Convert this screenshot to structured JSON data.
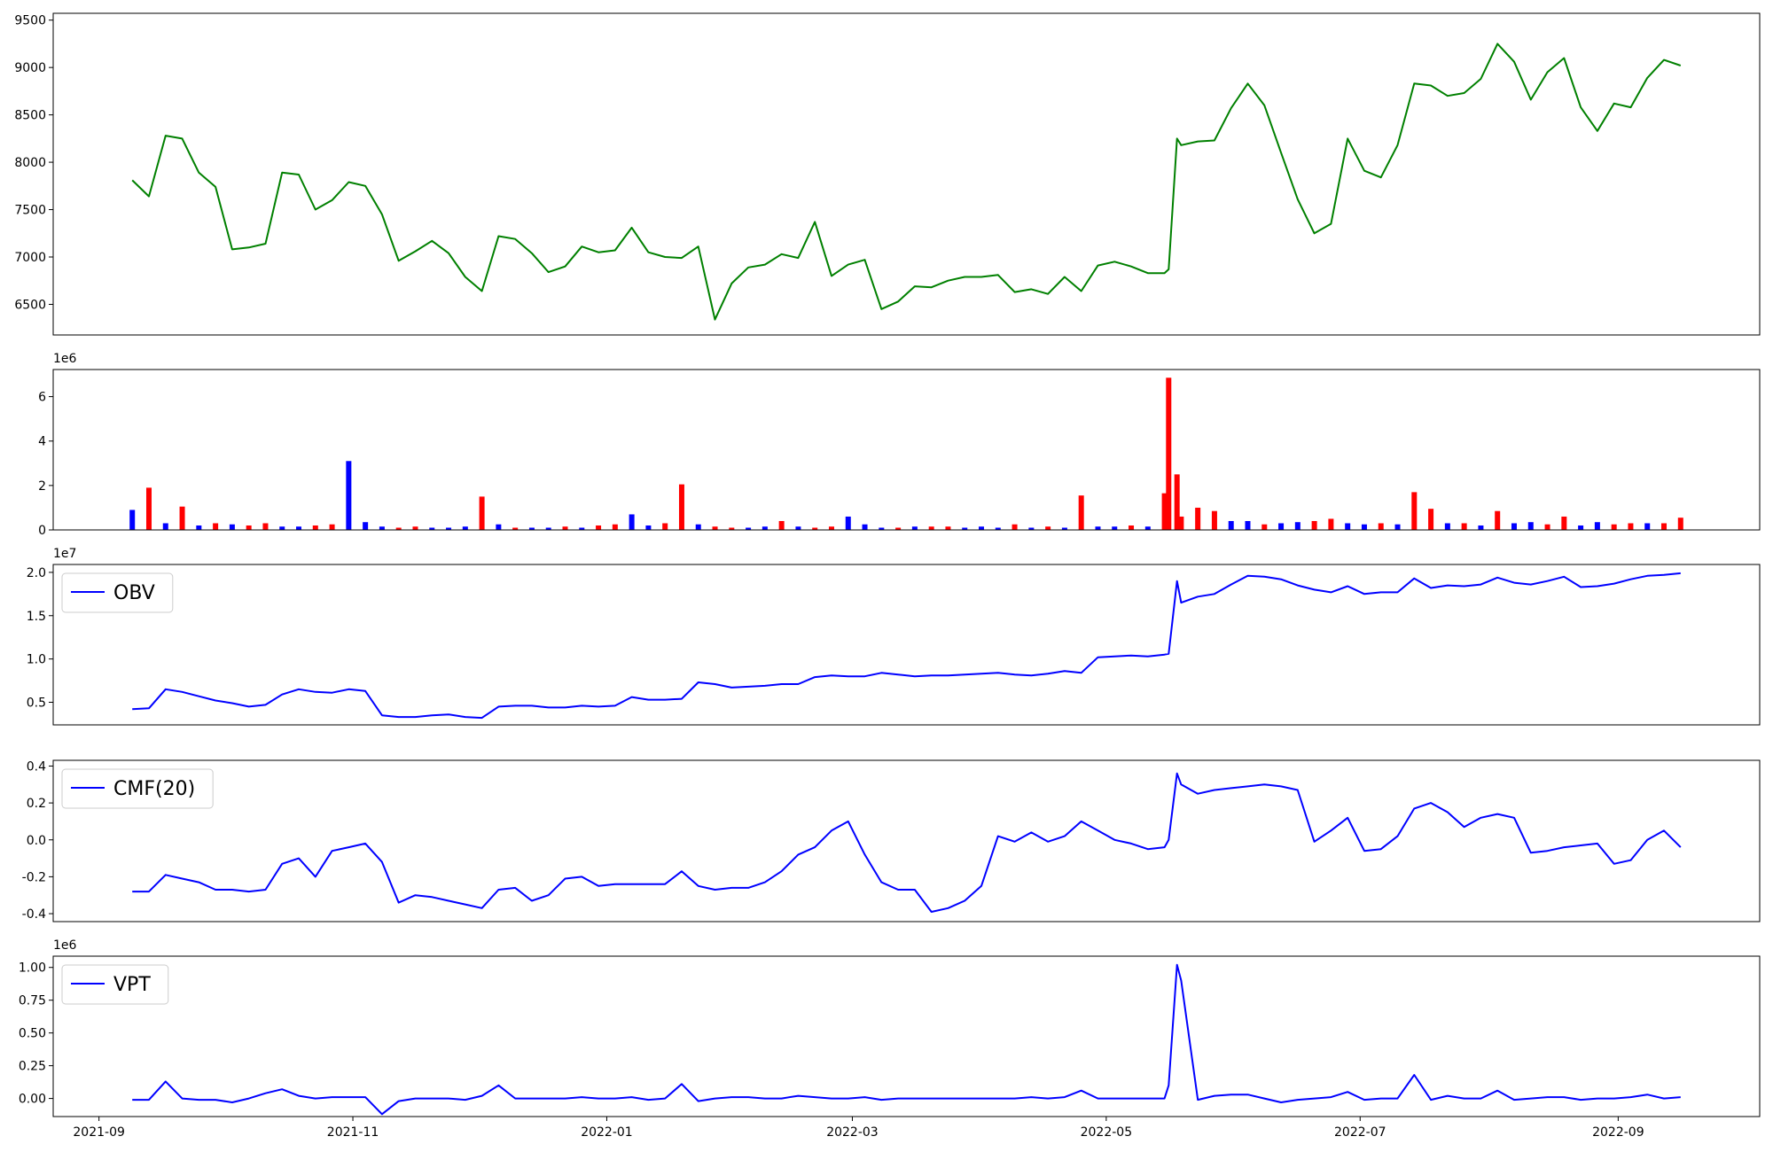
{
  "chart_data": {
    "type": "stacked-panels",
    "x": [
      8,
      12,
      16,
      20,
      24,
      28,
      32,
      36,
      40,
      44,
      48,
      52,
      56,
      60,
      64,
      68,
      72,
      76,
      80,
      84,
      88,
      92,
      96,
      100,
      104,
      108,
      112,
      116,
      120,
      124,
      128,
      132,
      136,
      140,
      144,
      148,
      152,
      156,
      160,
      164,
      168,
      172,
      176,
      180,
      184,
      188,
      192,
      196,
      200,
      204,
      208,
      212,
      216,
      220,
      224,
      228,
      232,
      236,
      240,
      244,
      248,
      252,
      256,
      257,
      259,
      260,
      264,
      268,
      272,
      276,
      280,
      284,
      288,
      292,
      296,
      300,
      304,
      308,
      312,
      316,
      320,
      324,
      328,
      332,
      336,
      340,
      344,
      348,
      352,
      356,
      360,
      364,
      368,
      372,
      376,
      380
    ],
    "xlim": [
      -11,
      399
    ],
    "xticks": [
      {
        "value": 0,
        "label": "2021-09"
      },
      {
        "value": 61,
        "label": "2021-11"
      },
      {
        "value": 122,
        "label": "2022-01"
      },
      {
        "value": 181,
        "label": "2022-03"
      },
      {
        "value": 242,
        "label": "2022-05"
      },
      {
        "value": 303,
        "label": "2022-07"
      },
      {
        "value": 365,
        "label": "2022-09"
      }
    ],
    "panels": [
      {
        "type": "line",
        "ylim": [
          6177,
          9572
        ],
        "yticks": [
          6500,
          7000,
          7500,
          8000,
          8500,
          9000,
          9500
        ],
        "series": [
          {
            "color": "#008000",
            "values": [
              7810,
              7640,
              8280,
              8250,
              7890,
              7740,
              7080,
              7100,
              7140,
              7890,
              7870,
              7500,
              7600,
              7790,
              7750,
              7450,
              6960,
              7060,
              7170,
              7040,
              6790,
              6640,
              7220,
              7190,
              7040,
              6840,
              6900,
              7110,
              7050,
              7070,
              7310,
              7050,
              7000,
              6990,
              7110,
              6340,
              6720,
              6890,
              6920,
              7030,
              6990,
              7370,
              6800,
              6920,
              6970,
              6450,
              6530,
              6690,
              6680,
              6750,
              6790,
              6790,
              6810,
              6630,
              6660,
              6610,
              6790,
              6640,
              6910,
              6950,
              6900,
              6830,
              6830,
              6870,
              8250,
              8180,
              8220,
              8230,
              8570,
              8830,
              8600,
              8100,
              7610,
              7250,
              7350,
              8250,
              7910,
              7840,
              8180,
              8830,
              8810,
              8700,
              8730,
              8880,
              9250,
              9060,
              8660,
              8950,
              9100,
              8580,
              8330,
              8620,
              8580,
              8890,
              9080,
              9020
            ]
          }
        ]
      },
      {
        "type": "bar",
        "offset_label": "1e6",
        "ylim": [
          0,
          7.22
        ],
        "yticks": [
          0,
          2,
          4,
          6
        ],
        "values": [
          0.9,
          1.9,
          0.3,
          1.05,
          0.2,
          0.3,
          0.25,
          0.2,
          0.3,
          0.15,
          0.15,
          0.2,
          0.25,
          3.1,
          0.35,
          0.15,
          0.1,
          0.15,
          0.1,
          0.1,
          0.15,
          1.5,
          0.25,
          0.1,
          0.1,
          0.1,
          0.15,
          0.1,
          0.2,
          0.25,
          0.7,
          0.2,
          0.3,
          2.05,
          0.25,
          0.15,
          0.1,
          0.1,
          0.15,
          0.4,
          0.15,
          0.1,
          0.15,
          0.6,
          0.25,
          0.1,
          0.1,
          0.15,
          0.15,
          0.15,
          0.1,
          0.15,
          0.1,
          0.25,
          0.1,
          0.15,
          0.1,
          1.55,
          0.15,
          0.15,
          0.2,
          0.15,
          1.65,
          6.85,
          2.5,
          0.6,
          1.0,
          0.85,
          0.4,
          0.4,
          0.25,
          0.3,
          0.35,
          0.4,
          0.5,
          0.3,
          0.25,
          0.3,
          0.25,
          1.7,
          0.95,
          0.3,
          0.3,
          0.2,
          0.85,
          0.3,
          0.35,
          0.25,
          0.6,
          0.2,
          0.35,
          0.25,
          0.3,
          0.3,
          0.3,
          0.55
        ],
        "colors": [
          "#0000ff",
          "#ff0000",
          "#0000ff",
          "#ff0000",
          "#0000ff",
          "#ff0000",
          "#0000ff",
          "#ff0000",
          "#ff0000",
          "#0000ff",
          "#0000ff",
          "#ff0000",
          "#ff0000",
          "#0000ff",
          "#0000ff",
          "#0000ff",
          "#ff0000",
          "#ff0000",
          "#0000ff",
          "#0000ff",
          "#0000ff",
          "#ff0000",
          "#0000ff",
          "#ff0000",
          "#0000ff",
          "#0000ff",
          "#ff0000",
          "#0000ff",
          "#ff0000",
          "#ff0000",
          "#0000ff",
          "#0000ff",
          "#ff0000",
          "#ff0000",
          "#0000ff",
          "#ff0000",
          "#ff0000",
          "#0000ff",
          "#0000ff",
          "#ff0000",
          "#0000ff",
          "#ff0000",
          "#ff0000",
          "#0000ff",
          "#0000ff",
          "#0000ff",
          "#ff0000",
          "#0000ff",
          "#ff0000",
          "#ff0000",
          "#0000ff",
          "#0000ff",
          "#0000ff",
          "#ff0000",
          "#0000ff",
          "#ff0000",
          "#0000ff",
          "#ff0000",
          "#0000ff",
          "#0000ff",
          "#ff0000",
          "#0000ff",
          "#ff0000",
          "#ff0000",
          "#ff0000",
          "#ff0000",
          "#ff0000",
          "#ff0000",
          "#0000ff",
          "#0000ff",
          "#ff0000",
          "#0000ff",
          "#0000ff",
          "#ff0000",
          "#ff0000",
          "#0000ff",
          "#0000ff",
          "#ff0000",
          "#0000ff",
          "#ff0000",
          "#ff0000",
          "#0000ff",
          "#ff0000",
          "#0000ff",
          "#ff0000",
          "#0000ff",
          "#0000ff",
          "#ff0000",
          "#ff0000",
          "#0000ff",
          "#0000ff",
          "#ff0000",
          "#ff0000",
          "#0000ff",
          "#ff0000",
          "#ff0000"
        ]
      },
      {
        "type": "line",
        "offset_label": "1e7",
        "legend": "upper left",
        "ylim": [
          0.239,
          2.091
        ],
        "yticks": [
          0.5,
          {
            "value": 1,
            "label": "1.0"
          },
          1.5,
          {
            "value": 2,
            "label": "2.0"
          }
        ],
        "series": [
          {
            "name": "OBV",
            "color": "#0000ff",
            "values": [
              0.42,
              0.43,
              0.65,
              0.62,
              0.57,
              0.52,
              0.49,
              0.45,
              0.47,
              0.59,
              0.65,
              0.62,
              0.61,
              0.65,
              0.63,
              0.35,
              0.33,
              0.33,
              0.35,
              0.36,
              0.33,
              0.32,
              0.45,
              0.46,
              0.46,
              0.44,
              0.44,
              0.46,
              0.45,
              0.46,
              0.56,
              0.53,
              0.53,
              0.54,
              0.73,
              0.71,
              0.67,
              0.68,
              0.69,
              0.71,
              0.71,
              0.79,
              0.81,
              0.8,
              0.8,
              0.84,
              0.82,
              0.8,
              0.81,
              0.81,
              0.82,
              0.83,
              0.84,
              0.82,
              0.81,
              0.83,
              0.86,
              0.84,
              1.02,
              1.03,
              1.04,
              1.03,
              1.05,
              1.06,
              1.9,
              1.65,
              1.72,
              1.75,
              1.86,
              1.96,
              1.95,
              1.92,
              1.85,
              1.8,
              1.77,
              1.84,
              1.75,
              1.77,
              1.77,
              1.93,
              1.82,
              1.85,
              1.84,
              1.86,
              1.94,
              1.88,
              1.86,
              1.9,
              1.95,
              1.83,
              1.84,
              1.87,
              1.92,
              1.96,
              1.97,
              1.99
            ]
          }
        ]
      },
      {
        "type": "line",
        "legend": "upper left",
        "ylim": [
          -0.443,
          0.431
        ],
        "yticks": [
          -0.4,
          -0.2,
          {
            "value": 0,
            "label": "0.0"
          },
          0.2,
          0.4
        ],
        "series": [
          {
            "name": "CMF(20)",
            "color": "#0000ff",
            "values": [
              -0.28,
              -0.28,
              -0.19,
              -0.21,
              -0.23,
              -0.27,
              -0.27,
              -0.28,
              -0.27,
              -0.13,
              -0.1,
              -0.2,
              -0.06,
              -0.04,
              -0.02,
              -0.12,
              -0.34,
              -0.3,
              -0.31,
              -0.33,
              -0.35,
              -0.37,
              -0.27,
              -0.26,
              -0.33,
              -0.3,
              -0.21,
              -0.2,
              -0.25,
              -0.24,
              -0.24,
              -0.24,
              -0.24,
              -0.17,
              -0.25,
              -0.27,
              -0.26,
              -0.26,
              -0.23,
              -0.17,
              -0.08,
              -0.04,
              0.05,
              0.1,
              -0.08,
              -0.23,
              -0.27,
              -0.27,
              -0.39,
              -0.37,
              -0.33,
              -0.25,
              0.02,
              -0.01,
              0.04,
              -0.01,
              0.02,
              0.1,
              0.05,
              0.0,
              -0.02,
              -0.05,
              -0.04,
              0.0,
              0.36,
              0.3,
              0.25,
              0.27,
              0.28,
              0.29,
              0.3,
              0.29,
              0.27,
              -0.01,
              0.05,
              0.12,
              -0.06,
              -0.05,
              0.02,
              0.17,
              0.2,
              0.15,
              0.07,
              0.12,
              0.14,
              0.12,
              -0.07,
              -0.06,
              -0.04,
              -0.03,
              -0.02,
              -0.13,
              -0.11,
              0.0,
              0.05,
              -0.04
            ]
          }
        ]
      },
      {
        "type": "line",
        "offset_label": "1e6",
        "legend": "upper left",
        "ylim": [
          -0.138,
          1.086
        ],
        "yticks": [
          {
            "value": 0,
            "label": "0.00"
          },
          {
            "value": 0.25,
            "label": "0.25"
          },
          {
            "value": 0.5,
            "label": "0.50"
          },
          {
            "value": 0.75,
            "label": "0.75"
          },
          {
            "value": 1,
            "label": "1.00"
          }
        ],
        "series": [
          {
            "name": "VPT",
            "color": "#0000ff",
            "values": [
              -0.01,
              -0.01,
              0.13,
              0.0,
              -0.01,
              -0.01,
              -0.03,
              0.0,
              0.04,
              0.07,
              0.02,
              0.0,
              0.01,
              0.01,
              0.01,
              -0.12,
              -0.02,
              0.0,
              0.0,
              0.0,
              -0.01,
              0.02,
              0.1,
              0.0,
              0.0,
              0.0,
              0.0,
              0.01,
              0.0,
              0.0,
              0.01,
              -0.01,
              0.0,
              0.11,
              -0.02,
              0.0,
              0.01,
              0.01,
              0.0,
              0.0,
              0.02,
              0.01,
              0.0,
              0.0,
              0.01,
              -0.01,
              0.0,
              0.0,
              0.0,
              0.0,
              0.0,
              0.0,
              0.0,
              0.0,
              0.01,
              0.0,
              0.01,
              0.06,
              0.0,
              0.0,
              0.0,
              0.0,
              0.0,
              0.1,
              1.02,
              0.9,
              -0.01,
              0.02,
              0.03,
              0.03,
              0.0,
              -0.03,
              -0.01,
              0.0,
              0.01,
              0.05,
              -0.01,
              0.0,
              0.0,
              0.18,
              -0.01,
              0.02,
              0.0,
              0.0,
              0.06,
              -0.01,
              0.0,
              0.01,
              0.01,
              -0.01,
              0.0,
              0.0,
              0.01,
              0.03,
              0.0,
              0.01
            ]
          }
        ]
      }
    ]
  }
}
